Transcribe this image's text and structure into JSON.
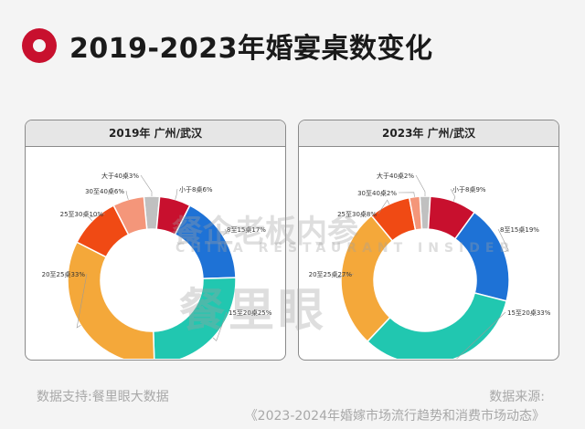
{
  "title": "2019-2023年婚宴桌数变化",
  "footer": {
    "support": "数据支持:餐里眼大数据",
    "source_label": "数据来源:",
    "source_title": "《2023-2024年婚嫁市场流行趋势和消费市场动态》"
  },
  "watermark": {
    "line1": "餐企老板内参",
    "line2": "CHINA RESTAURANT INSIDER",
    "line3": "餐里眼"
  },
  "chart_data": [
    {
      "type": "pie",
      "title": "2019年 广州/武汉",
      "labels": [
        "大于40桌",
        "小于8桌",
        "8至15桌",
        "15至20桌",
        "20至25桌",
        "25至30桌",
        "30至40桌"
      ],
      "values": [
        3,
        6,
        17,
        25,
        33,
        10,
        6
      ],
      "slice_labels": [
        "大于40桌3%",
        "小于8桌6%",
        "8至15桌17%",
        "15至20桌25%",
        "20至25桌33%",
        "25至30桌10%",
        "30至40桌6%"
      ]
    },
    {
      "type": "pie",
      "title": "2023年 广州/武汉",
      "labels": [
        "大于40桌",
        "小于8桌",
        "8至15桌",
        "15至20桌",
        "20至25桌",
        "25至30桌",
        "30至40桌"
      ],
      "values": [
        2,
        9,
        19,
        33,
        27,
        8,
        2
      ],
      "slice_labels": [
        "大于40桌2%",
        "小于8桌9%",
        "8至15桌19%",
        "15至20桌33%",
        "20至25桌27%",
        "25至30桌8%",
        "30至40桌2%"
      ]
    }
  ],
  "colors": [
    "#c0c0c0",
    "#c8102e",
    "#1e72d6",
    "#21c7b0",
    "#f4a83a",
    "#f04a14",
    "#f4967a"
  ]
}
